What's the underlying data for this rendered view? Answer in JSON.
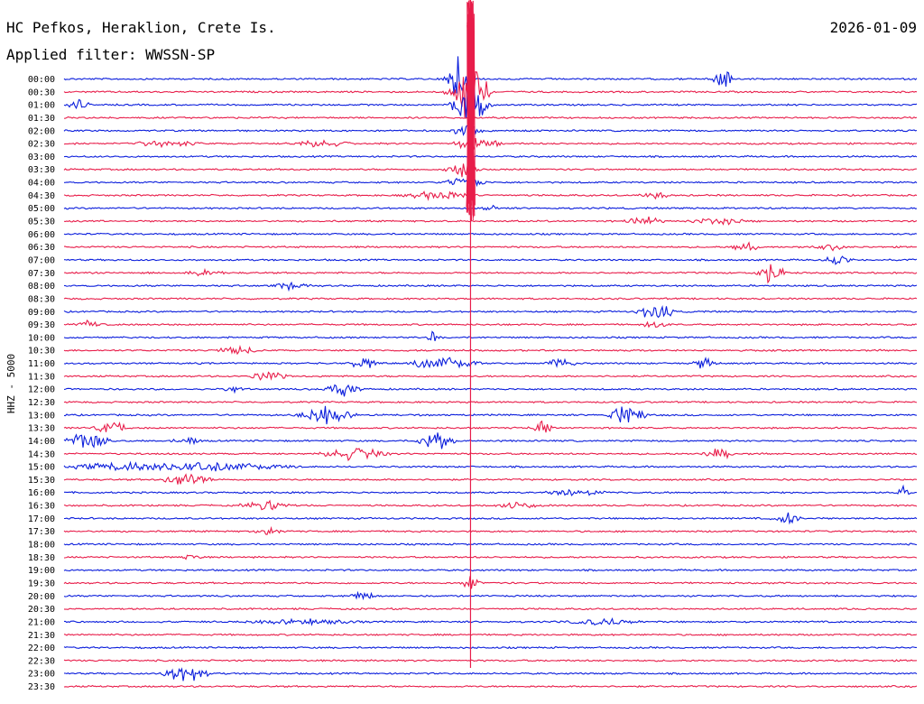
{
  "header": {
    "station": "HC Pefkos, Heraklion, Crete Is.",
    "date": "2026-01-09",
    "filter_label": "Applied filter: WWSSN-SP"
  },
  "y_axis_label": "HHZ - 5000",
  "colors": {
    "trace_a": "#0b1edc",
    "trace_b": "#e81d4a",
    "text": "#000000",
    "background": "#ffffff"
  },
  "chart_data": {
    "type": "line",
    "title": "HC Pefkos, Heraklion, Crete Is.",
    "subtitle": "Applied filter: WWSSN-SP",
    "date": "2026-01-09",
    "ylabel": "HHZ - 5000",
    "grid": false,
    "row_labels": [
      "00:00",
      "00:30",
      "01:00",
      "01:30",
      "02:00",
      "02:30",
      "03:00",
      "03:30",
      "04:00",
      "04:30",
      "05:00",
      "05:30",
      "06:00",
      "06:30",
      "07:00",
      "07:30",
      "08:00",
      "08:30",
      "09:00",
      "09:30",
      "10:00",
      "10:30",
      "11:00",
      "11:30",
      "12:00",
      "12:30",
      "13:00",
      "13:30",
      "14:00",
      "14:30",
      "15:00",
      "15:30",
      "16:00",
      "16:30",
      "17:00",
      "17:30",
      "18:00",
      "18:30",
      "19:00",
      "19:30",
      "20:00",
      "20:30",
      "21:00",
      "21:30",
      "22:00",
      "22:30",
      "23:00",
      "23:30"
    ],
    "row_minutes": 30,
    "x_minutes_range": [
      0,
      30
    ],
    "row_colors": [
      "trace_a",
      "trace_b"
    ],
    "events": [
      {
        "row": 0,
        "minute": 13.9,
        "amp": 2.6,
        "dur": 0.6
      },
      {
        "row": 0,
        "minute": 23.15,
        "amp": 2.4,
        "dur": 0.4
      },
      {
        "row": 1,
        "minute": 14.2,
        "amp": 3.8,
        "dur": 0.9
      },
      {
        "row": 2,
        "minute": 14.3,
        "amp": 3.2,
        "dur": 0.8
      },
      {
        "row": 2,
        "minute": 0.5,
        "amp": 0.6,
        "dur": 0.5
      },
      {
        "row": 4,
        "minute": 14.2,
        "amp": 1.0,
        "dur": 0.6
      },
      {
        "row": 5,
        "minute": 14.5,
        "amp": 1.0,
        "dur": 1.0
      },
      {
        "row": 5,
        "minute": 3.5,
        "amp": 0.4,
        "dur": 1.4
      },
      {
        "row": 5,
        "minute": 9.0,
        "amp": 0.4,
        "dur": 1.4
      },
      {
        "row": 7,
        "minute": 14.0,
        "amp": 0.9,
        "dur": 0.8
      },
      {
        "row": 8,
        "minute": 14.1,
        "amp": 0.8,
        "dur": 0.8
      },
      {
        "row": 9,
        "minute": 13.2,
        "amp": 0.5,
        "dur": 1.5
      },
      {
        "row": 9,
        "minute": 20.8,
        "amp": 0.5,
        "dur": 0.6
      },
      {
        "row": 10,
        "minute": 15.0,
        "amp": 0.5,
        "dur": 0.3
      },
      {
        "row": 11,
        "minute": 20.4,
        "amp": 0.6,
        "dur": 0.8
      },
      {
        "row": 11,
        "minute": 23.0,
        "amp": 0.4,
        "dur": 1.2
      },
      {
        "row": 13,
        "minute": 24.0,
        "amp": 0.6,
        "dur": 0.6
      },
      {
        "row": 13,
        "minute": 27.0,
        "amp": 0.4,
        "dur": 0.6
      },
      {
        "row": 14,
        "minute": 27.2,
        "amp": 0.6,
        "dur": 0.6
      },
      {
        "row": 15,
        "minute": 24.9,
        "amp": 1.6,
        "dur": 0.6
      },
      {
        "row": 15,
        "minute": 5.0,
        "amp": 0.5,
        "dur": 0.8
      },
      {
        "row": 16,
        "minute": 8.0,
        "amp": 0.4,
        "dur": 0.8
      },
      {
        "row": 18,
        "minute": 20.8,
        "amp": 1.1,
        "dur": 0.8
      },
      {
        "row": 19,
        "minute": 20.8,
        "amp": 0.7,
        "dur": 0.5
      },
      {
        "row": 19,
        "minute": 0.8,
        "amp": 0.5,
        "dur": 0.6
      },
      {
        "row": 20,
        "minute": 13.0,
        "amp": 0.7,
        "dur": 0.3
      },
      {
        "row": 21,
        "minute": 6.1,
        "amp": 0.5,
        "dur": 0.9
      },
      {
        "row": 22,
        "minute": 13.4,
        "amp": 0.9,
        "dur": 1.5
      },
      {
        "row": 22,
        "minute": 10.5,
        "amp": 0.8,
        "dur": 0.6
      },
      {
        "row": 22,
        "minute": 17.5,
        "amp": 0.7,
        "dur": 0.6
      },
      {
        "row": 22,
        "minute": 22.5,
        "amp": 0.7,
        "dur": 0.6
      },
      {
        "row": 23,
        "minute": 7.2,
        "amp": 0.6,
        "dur": 0.8
      },
      {
        "row": 24,
        "minute": 9.8,
        "amp": 0.8,
        "dur": 0.8
      },
      {
        "row": 24,
        "minute": 5.9,
        "amp": 0.6,
        "dur": 0.4
      },
      {
        "row": 26,
        "minute": 9.2,
        "amp": 1.0,
        "dur": 1.2
      },
      {
        "row": 26,
        "minute": 19.8,
        "amp": 1.4,
        "dur": 0.8
      },
      {
        "row": 27,
        "minute": 1.7,
        "amp": 0.7,
        "dur": 0.8
      },
      {
        "row": 27,
        "minute": 16.8,
        "amp": 0.8,
        "dur": 0.5
      },
      {
        "row": 28,
        "minute": 0.8,
        "amp": 1.2,
        "dur": 1.0
      },
      {
        "row": 28,
        "minute": 13.1,
        "amp": 1.2,
        "dur": 0.8
      },
      {
        "row": 28,
        "minute": 4.3,
        "amp": 0.6,
        "dur": 0.6
      },
      {
        "row": 29,
        "minute": 10.2,
        "amp": 0.8,
        "dur": 1.4
      },
      {
        "row": 29,
        "minute": 23.0,
        "amp": 0.8,
        "dur": 0.6
      },
      {
        "row": 30,
        "minute": 2.7,
        "amp": 0.6,
        "dur": 3.0
      },
      {
        "row": 30,
        "minute": 6.0,
        "amp": 0.5,
        "dur": 2.5
      },
      {
        "row": 31,
        "minute": 4.3,
        "amp": 0.9,
        "dur": 1.0
      },
      {
        "row": 32,
        "minute": 18.0,
        "amp": 0.5,
        "dur": 1.2
      },
      {
        "row": 32,
        "minute": 29.5,
        "amp": 0.7,
        "dur": 0.3
      },
      {
        "row": 33,
        "minute": 7.2,
        "amp": 0.6,
        "dur": 1.2
      },
      {
        "row": 33,
        "minute": 16.0,
        "amp": 0.4,
        "dur": 1.0
      },
      {
        "row": 34,
        "minute": 25.4,
        "amp": 0.9,
        "dur": 0.6
      },
      {
        "row": 35,
        "minute": 7.2,
        "amp": 0.5,
        "dur": 0.6
      },
      {
        "row": 37,
        "minute": 4.5,
        "amp": 0.7,
        "dur": 0.4
      },
      {
        "row": 39,
        "minute": 14.3,
        "amp": 0.9,
        "dur": 0.4
      },
      {
        "row": 40,
        "minute": 10.5,
        "amp": 0.5,
        "dur": 0.5
      },
      {
        "row": 42,
        "minute": 19.0,
        "amp": 0.4,
        "dur": 1.5
      },
      {
        "row": 42,
        "minute": 8.5,
        "amp": 0.3,
        "dur": 2.5
      },
      {
        "row": 46,
        "minute": 4.3,
        "amp": 1.2,
        "dur": 1.0
      }
    ],
    "main_event": {
      "row": 2,
      "minute": 14.3,
      "amp_rows": 9.0,
      "coda_rows": 45
    }
  }
}
